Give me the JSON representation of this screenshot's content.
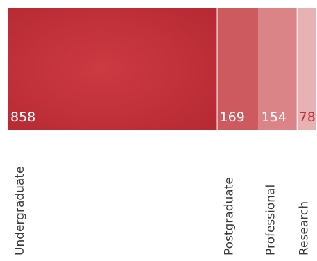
{
  "chart_data": {
    "type": "bar",
    "title": "",
    "categories": [
      "Undergraduate",
      "Postgraduate",
      "Professional",
      "Research"
    ],
    "values": [
      858,
      169,
      154,
      78
    ],
    "colors": [
      "#c1313a",
      "#cc5a5e",
      "#da8487",
      "#e8b2b4"
    ],
    "value_label_colors": [
      "#ffffff",
      "#ffffff",
      "#ffffff",
      "#c1313a"
    ],
    "xlabel": "",
    "ylabel": "",
    "grid": false,
    "legend": "none"
  }
}
